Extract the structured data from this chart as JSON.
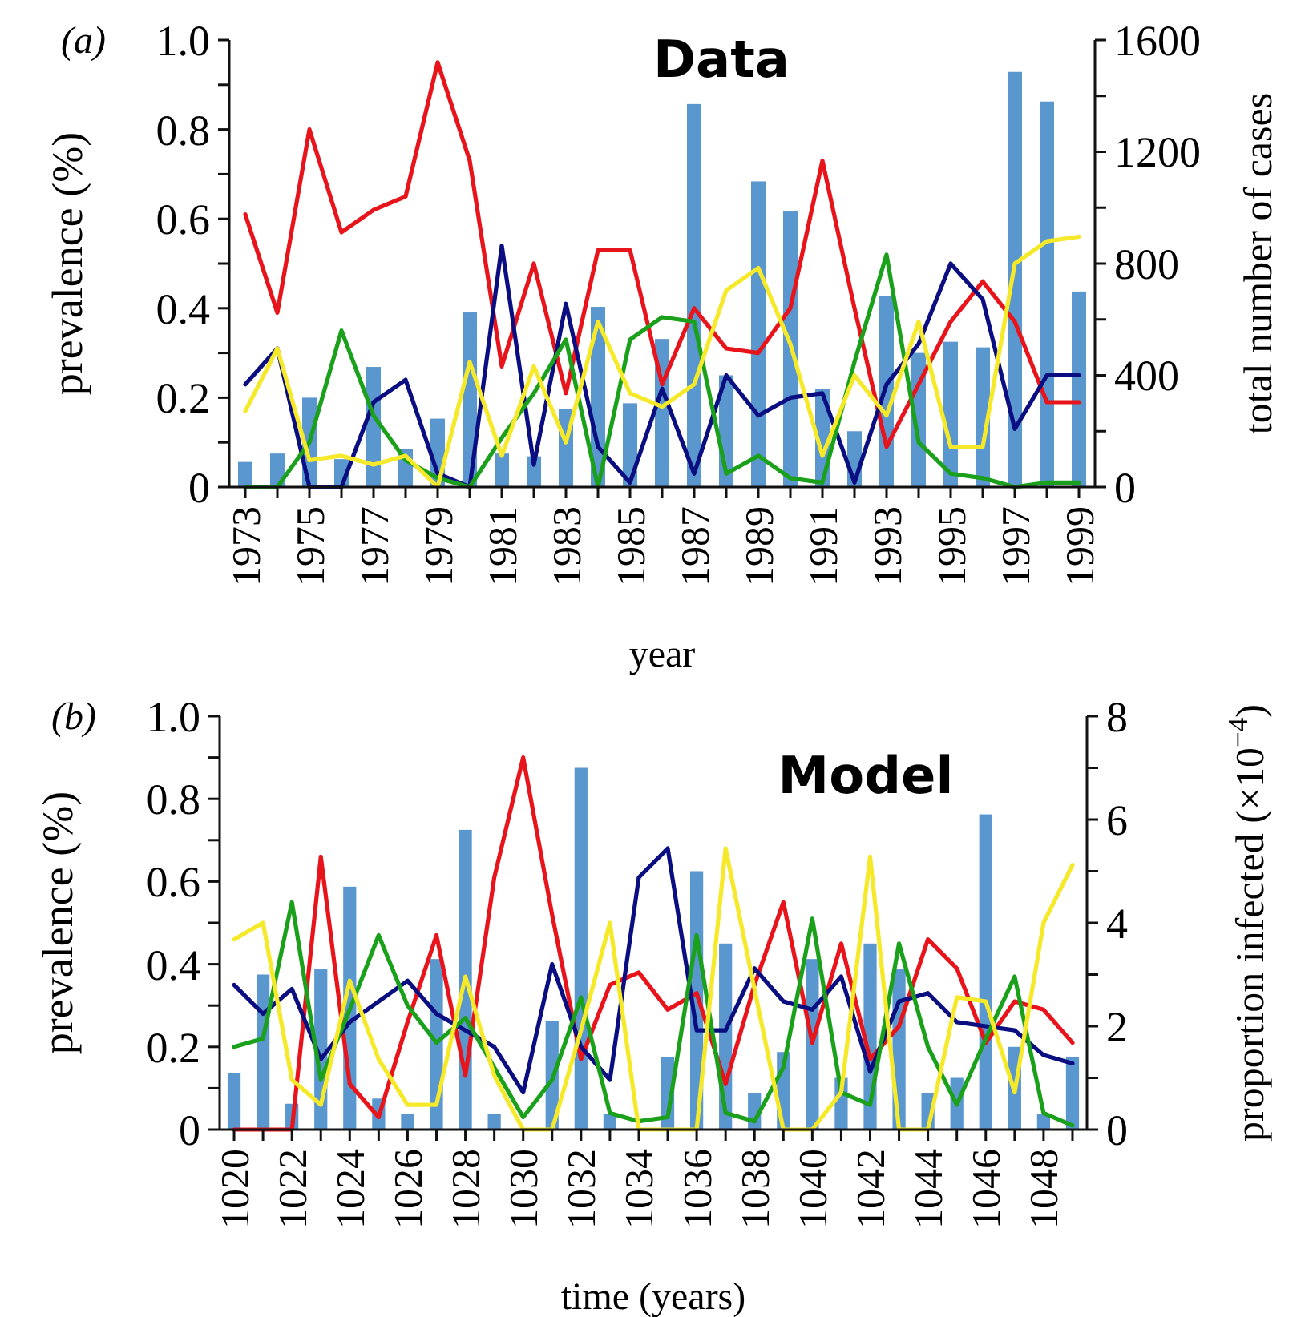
{
  "chart_data": [
    {
      "type": "line",
      "title": "Data",
      "xlabel": "year",
      "ylabel": "prevalence (%)",
      "y2label": "total number of cases",
      "annotations": [
        "(a)"
      ],
      "categories": [
        "1973",
        null,
        "1975",
        null,
        "1977",
        null,
        "1979",
        null,
        "1981",
        null,
        "1983",
        null,
        "1985",
        null,
        "1987",
        null,
        "1989",
        null,
        "1991",
        null,
        "1993",
        null,
        "1995",
        null,
        "1997",
        null,
        "1999"
      ],
      "ylim": [
        0,
        1
      ],
      "yticks": [
        0,
        {
          "value": 0.1,
          "label": null
        },
        0.2,
        {
          "value": 0.3,
          "label": null
        },
        0.4,
        {
          "value": 0.5,
          "label": null
        },
        0.6,
        {
          "value": 0.7,
          "label": null
        },
        0.8,
        {
          "value": 0.9,
          "label": null
        },
        {
          "value": 1,
          "label": "1.0"
        }
      ],
      "y2lim": [
        0,
        1600
      ],
      "y2ticks": [
        0,
        {
          "value": 200,
          "label": null
        },
        400,
        {
          "value": 600,
          "label": null
        },
        800,
        {
          "value": 1000,
          "label": null
        },
        1200,
        {
          "value": 1400,
          "label": null
        },
        1600
      ],
      "grid": false,
      "marker": "none",
      "line_style": "solid",
      "series": [
        {
          "type": "bar",
          "axis": "y2",
          "color": "#3d85c6",
          "values": [
            90,
            120,
            320,
            100,
            430,
            135,
            245,
            625,
            120,
            110,
            280,
            645,
            300,
            530,
            1371,
            400,
            1094,
            989,
            350,
            200,
            683,
            480,
            520,
            500,
            1486,
            1380,
            700
          ]
        },
        {
          "color": "#e8141b",
          "values": [
            0.61,
            0.39,
            0.8,
            0.57,
            0.62,
            0.65,
            0.95,
            0.73,
            0.27,
            0.5,
            0.21,
            0.53,
            0.53,
            0.23,
            0.4,
            0.31,
            0.3,
            0.4,
            0.73,
            0.4,
            0.09,
            0.23,
            0.37,
            0.46,
            0.37,
            0.19,
            0.19
          ]
        },
        {
          "color": "#0b0e80",
          "values": [
            0.23,
            0.31,
            0,
            0,
            0.19,
            0.24,
            0.03,
            0,
            0.54,
            0.05,
            0.41,
            0.09,
            0.01,
            0.22,
            0.03,
            0.25,
            0.16,
            0.2,
            0.21,
            0.01,
            0.23,
            0.32,
            0.5,
            0.42,
            0.13,
            0.25,
            0.25
          ]
        },
        {
          "color": "#1aa01a",
          "values": [
            0,
            0,
            0.1,
            0.35,
            0.16,
            0.06,
            0.02,
            0,
            0.11,
            0.21,
            0.33,
            0,
            0.33,
            0.38,
            0.37,
            0.03,
            0.07,
            0.02,
            0.01,
            0.28,
            0.52,
            0.1,
            0.03,
            0.02,
            0,
            0.01,
            0.01
          ]
        },
        {
          "color": "#f5e92a",
          "values": [
            0.17,
            0.31,
            0.06,
            0.07,
            0.05,
            0.07,
            0,
            0.28,
            0.07,
            0.27,
            0.1,
            0.37,
            0.21,
            0.18,
            0.23,
            0.44,
            0.49,
            0.32,
            0.07,
            0.25,
            0.16,
            0.37,
            0.09,
            0.09,
            0.5,
            0.55,
            0.56
          ]
        }
      ]
    },
    {
      "type": "line",
      "title": "Model",
      "xlabel": "time (years)",
      "ylabel": "prevalence (%)",
      "y2label": "proportion infected (×10$^{−4}$)",
      "annotations": [
        "(b)"
      ],
      "categories": [
        "1020",
        null,
        "1022",
        null,
        "1024",
        null,
        "1026",
        null,
        "1028",
        null,
        "1030",
        null,
        "1032",
        null,
        "1034",
        null,
        "1036",
        null,
        "1038",
        null,
        "1040",
        null,
        "1042",
        null,
        "1044",
        null,
        "1046",
        null,
        "1048",
        null
      ],
      "ylim": [
        0,
        1
      ],
      "yticks": [
        0,
        {
          "value": 0.1,
          "label": null
        },
        0.2,
        {
          "value": 0.3,
          "label": null
        },
        0.4,
        {
          "value": 0.5,
          "label": null
        },
        0.6,
        {
          "value": 0.7,
          "label": null
        },
        0.8,
        {
          "value": 0.9,
          "label": null
        },
        {
          "value": 1,
          "label": "1.0"
        }
      ],
      "y2lim": [
        0,
        8
      ],
      "y2ticks": [
        0,
        {
          "value": 1,
          "label": null
        },
        2,
        {
          "value": 3,
          "label": null
        },
        4,
        {
          "value": 5,
          "label": null
        },
        6,
        {
          "value": 7,
          "label": null
        },
        8
      ],
      "grid": false,
      "marker": "none",
      "line_style": "solid",
      "series": [
        {
          "type": "bar",
          "axis": "y2",
          "color": "#3d85c6",
          "values": [
            1.1,
            3,
            0.5,
            3.1,
            4.7,
            0.6,
            0.3,
            3.3,
            5.8,
            0.3,
            0,
            2.1,
            7,
            0.3,
            null,
            1.4,
            5,
            3.6,
            0.7,
            1.5,
            3.3,
            1,
            3.6,
            3.1,
            0.7,
            1,
            6.1,
            1.6,
            0.3,
            1.4
          ]
        },
        {
          "color": "#e8141b",
          "values": [
            0,
            0,
            0,
            0.66,
            0.11,
            0.03,
            0.26,
            0.47,
            0.13,
            0.61,
            0.9,
            0.52,
            0.17,
            0.35,
            0.38,
            0.29,
            0.33,
            0.11,
            0.35,
            0.55,
            0.21,
            0.45,
            0.17,
            0.25,
            0.46,
            0.39,
            0.21,
            0.31,
            0.29,
            0.21
          ]
        },
        {
          "color": "#0b0e80",
          "values": [
            0.35,
            0.28,
            0.34,
            0.17,
            0.26,
            0.31,
            0.36,
            0.28,
            0.24,
            0.2,
            0.09,
            0.4,
            0.2,
            0.12,
            0.61,
            0.68,
            0.24,
            0.24,
            0.39,
            0.31,
            0.29,
            0.37,
            0.14,
            0.31,
            0.33,
            0.26,
            0.25,
            0.24,
            0.18,
            0.16
          ]
        },
        {
          "color": "#1aa01a",
          "values": [
            0.2,
            0.22,
            0.55,
            0.12,
            0.29,
            0.47,
            0.3,
            0.21,
            0.27,
            0.15,
            0.03,
            0.12,
            0.32,
            0.04,
            0.02,
            0.03,
            0.47,
            0.04,
            0.02,
            0.15,
            0.51,
            0.09,
            0.06,
            0.45,
            0.2,
            0.06,
            0.22,
            0.37,
            0.04,
            0.01
          ]
        },
        {
          "color": "#f5e92a",
          "values": [
            0.46,
            0.5,
            0.12,
            0.06,
            0.36,
            0.17,
            0.06,
            0.06,
            0.37,
            0.13,
            0,
            0,
            0.24,
            0.5,
            0,
            0,
            0,
            0.68,
            0.34,
            0,
            0,
            0.09,
            0.66,
            0,
            0,
            0.32,
            0.31,
            0.09,
            0.5,
            0.64
          ]
        }
      ]
    }
  ]
}
